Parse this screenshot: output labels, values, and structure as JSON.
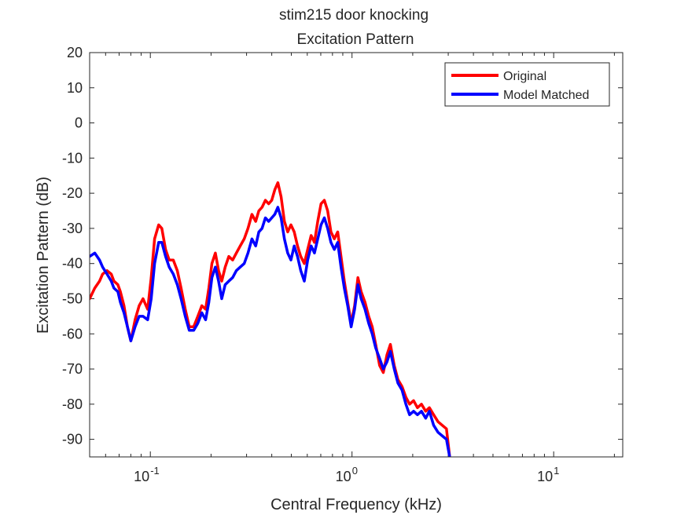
{
  "chart_data": {
    "type": "line",
    "title": "stim215 door knocking",
    "subtitle": "Excitation Pattern",
    "xlabel": "Central Frequency (kHz)",
    "ylabel": "Excitation Pattern (dB)",
    "xscale": "log",
    "xlim": [
      0.05,
      22
    ],
    "ylim": [
      -95,
      20
    ],
    "yticks": [
      20,
      10,
      0,
      -10,
      -20,
      -30,
      -40,
      -50,
      -60,
      -70,
      -80,
      -90
    ],
    "xticks": [
      {
        "value": 0.1,
        "base": "10",
        "exp": "-1"
      },
      {
        "value": 1,
        "base": "10",
        "exp": "0"
      },
      {
        "value": 10,
        "base": "10",
        "exp": "1"
      }
    ],
    "grid": false,
    "legend_position": "top-right",
    "x": [
      0.05,
      0.053,
      0.056,
      0.058,
      0.061,
      0.064,
      0.066,
      0.069,
      0.071,
      0.074,
      0.077,
      0.08,
      0.084,
      0.088,
      0.092,
      0.097,
      0.101,
      0.105,
      0.11,
      0.114,
      0.119,
      0.124,
      0.13,
      0.136,
      0.142,
      0.149,
      0.156,
      0.164,
      0.172,
      0.18,
      0.188,
      0.195,
      0.202,
      0.21,
      0.218,
      0.226,
      0.235,
      0.245,
      0.256,
      0.267,
      0.279,
      0.292,
      0.305,
      0.319,
      0.333,
      0.345,
      0.358,
      0.372,
      0.386,
      0.4,
      0.414,
      0.429,
      0.445,
      0.462,
      0.48,
      0.498,
      0.517,
      0.537,
      0.557,
      0.58,
      0.603,
      0.627,
      0.651,
      0.676,
      0.702,
      0.729,
      0.757,
      0.786,
      0.817,
      0.849,
      0.882,
      0.916,
      0.952,
      0.99,
      1.03,
      1.07,
      1.11,
      1.16,
      1.21,
      1.26,
      1.31,
      1.37,
      1.43,
      1.49,
      1.55,
      1.62,
      1.69,
      1.77,
      1.85,
      1.93,
      2.02,
      2.11,
      2.21,
      2.32,
      2.42,
      2.54,
      2.67,
      2.8,
      2.94,
      3.05
    ],
    "series": [
      {
        "name": "Original",
        "color": "#ff0000",
        "values": [
          -50,
          -47,
          -45,
          -43,
          -42,
          -43,
          -45,
          -46,
          -48,
          -52,
          -58,
          -62,
          -56,
          -52,
          -50,
          -53,
          -44,
          -33,
          -29,
          -30,
          -36,
          -39,
          -39,
          -42,
          -47,
          -53,
          -58,
          -58,
          -55,
          -52,
          -53,
          -47,
          -40,
          -37,
          -42,
          -45,
          -41,
          -38,
          -39,
          -37,
          -35,
          -33,
          -30,
          -26,
          -28,
          -25,
          -24,
          -22,
          -23,
          -22,
          -19,
          -17,
          -21,
          -28,
          -31,
          -29,
          -31,
          -35,
          -38,
          -40,
          -36,
          -32,
          -34,
          -28,
          -23,
          -22,
          -25,
          -31,
          -33,
          -31,
          -38,
          -45,
          -51,
          -57,
          -52,
          -44,
          -48,
          -51,
          -55,
          -58,
          -63,
          -69,
          -71,
          -66,
          -63,
          -69,
          -73,
          -75,
          -78,
          -80,
          -79,
          -81,
          -80,
          -82,
          -81,
          -83,
          -85,
          -86,
          -87,
          -95
        ]
      },
      {
        "name": "Model Matched",
        "color": "#0000ff",
        "values": [
          -38,
          -37,
          -39,
          -41,
          -43,
          -45,
          -47,
          -48,
          -51,
          -54,
          -58,
          -62,
          -58,
          -55,
          -55,
          -56,
          -50,
          -40,
          -34,
          -34,
          -38,
          -41,
          -43,
          -46,
          -50,
          -55,
          -59,
          -59,
          -57,
          -54,
          -56,
          -51,
          -44,
          -41,
          -45,
          -50,
          -46,
          -45,
          -44,
          -42,
          -41,
          -40,
          -37,
          -33,
          -35,
          -31,
          -30,
          -27,
          -28,
          -27,
          -26,
          -24,
          -27,
          -33,
          -37,
          -39,
          -35,
          -38,
          -42,
          -45,
          -39,
          -35,
          -37,
          -33,
          -29,
          -27,
          -30,
          -34,
          -36,
          -34,
          -41,
          -47,
          -52,
          -58,
          -53,
          -46,
          -50,
          -53,
          -57,
          -60,
          -64,
          -67,
          -70,
          -68,
          -65,
          -70,
          -74,
          -76,
          -80,
          -83,
          -82,
          -83,
          -82,
          -84,
          -82,
          -86,
          -88,
          -89,
          -90,
          -95
        ]
      }
    ]
  }
}
